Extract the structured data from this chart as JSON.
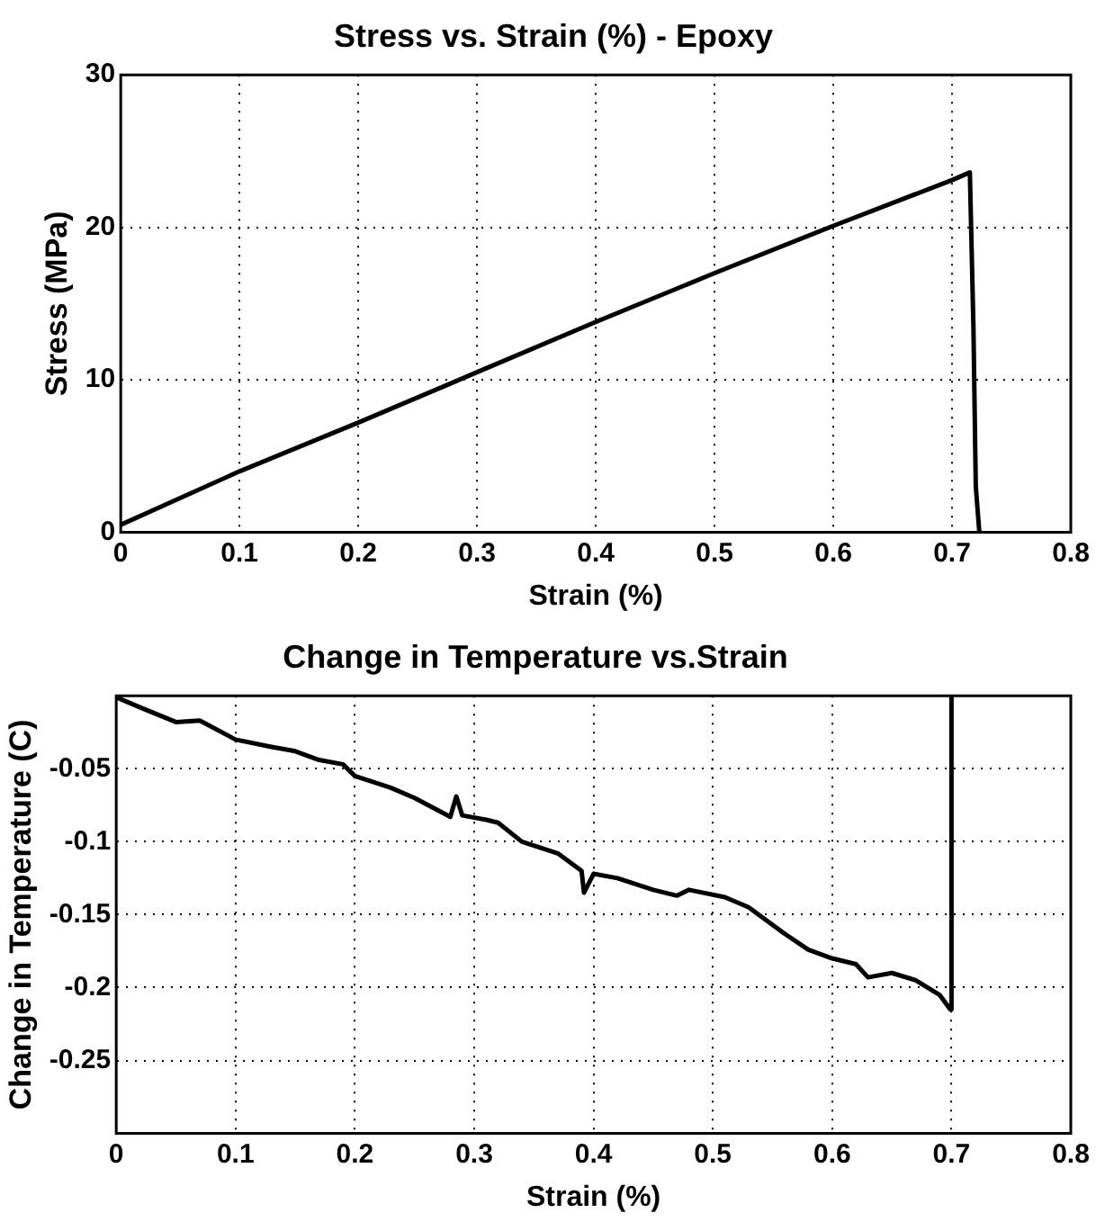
{
  "chart_data": [
    {
      "type": "line",
      "title": "Stress vs. Strain (%) - Epoxy",
      "xlabel": "Strain (%)",
      "ylabel": "Stress (MPa)",
      "xlim": [
        0,
        0.8
      ],
      "ylim": [
        0,
        30
      ],
      "xticks": [
        0,
        0.1,
        0.2,
        0.3,
        0.4,
        0.5,
        0.6,
        0.7,
        0.8
      ],
      "yticks": [
        0,
        10,
        20,
        30
      ],
      "grid": true,
      "marker": "none",
      "series": [
        {
          "color": "#000000",
          "x": [
            0,
            0.1,
            0.2,
            0.3,
            0.4,
            0.5,
            0.6,
            0.7,
            0.715,
            0.718,
            0.72,
            0.723
          ],
          "values": [
            0.5,
            4,
            7.2,
            10.5,
            13.8,
            17,
            20.1,
            23.1,
            23.6,
            13.5,
            3,
            0
          ]
        }
      ]
    },
    {
      "type": "line",
      "title": "Change in Temperature vs.Strain",
      "xlabel": "Strain (%)",
      "ylabel": "Change in Temperature (C)",
      "xlim": [
        0,
        0.8
      ],
      "ylim": [
        -0.3,
        0
      ],
      "xticks": [
        0,
        0.1,
        0.2,
        0.3,
        0.4,
        0.5,
        0.6,
        0.7,
        0.8
      ],
      "yticks": [
        -0.05,
        -0.1,
        -0.15,
        -0.2,
        -0.25
      ],
      "grid": true,
      "marker": "none",
      "series": [
        {
          "color": "#000000",
          "x": [
            0,
            0.02,
            0.05,
            0.07,
            0.1,
            0.13,
            0.15,
            0.17,
            0.19,
            0.2,
            0.23,
            0.25,
            0.28,
            0.285,
            0.29,
            0.31,
            0.32,
            0.34,
            0.37,
            0.39,
            0.392,
            0.4,
            0.42,
            0.45,
            0.47,
            0.48,
            0.51,
            0.53,
            0.56,
            0.58,
            0.6,
            0.62,
            0.63,
            0.65,
            0.67,
            0.69,
            0.699,
            0.7
          ],
          "values": [
            -0.001,
            -0.008,
            -0.018,
            -0.017,
            -0.03,
            -0.035,
            -0.038,
            -0.044,
            -0.047,
            -0.055,
            -0.063,
            -0.07,
            -0.083,
            -0.069,
            -0.082,
            -0.085,
            -0.087,
            -0.1,
            -0.108,
            -0.12,
            -0.135,
            -0.122,
            -0.125,
            -0.133,
            -0.137,
            -0.133,
            -0.138,
            -0.145,
            -0.163,
            -0.174,
            -0.18,
            -0.184,
            -0.193,
            -0.19,
            -0.195,
            -0.205,
            -0.215,
            0
          ]
        }
      ]
    }
  ]
}
